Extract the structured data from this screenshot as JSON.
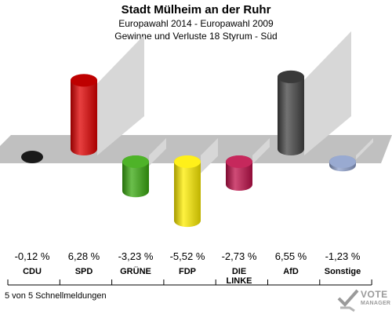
{
  "header": {
    "title": "Stadt Mülheim an der Ruhr",
    "subtitle1": "Europawahl 2014 - Europawahl 2009",
    "subtitle2": "Gewinne und Verluste 18 Styrum - Süd"
  },
  "footer": {
    "status": "5 von 5 Schnellmeldungen",
    "logo_line1": "VOTE",
    "logo_line2": "MANAGER"
  },
  "chart_data": {
    "type": "bar",
    "categories": [
      "CDU",
      "SPD",
      "GRÜNE",
      "FDP",
      "DIE LINKE",
      "AfD",
      "Sonstige"
    ],
    "category_lines": [
      [
        "CDU"
      ],
      [
        "SPD"
      ],
      [
        "GRÜNE"
      ],
      [
        "FDP"
      ],
      [
        "DIE",
        "LINKE"
      ],
      [
        "AfD"
      ],
      [
        "Sonstige"
      ]
    ],
    "values": [
      -0.12,
      6.28,
      -3.23,
      -5.52,
      -2.73,
      6.55,
      -1.23
    ],
    "value_labels": [
      "-0,12 %",
      "6,28 %",
      "-3,23 %",
      "-5,52 %",
      "-2,73 %",
      "6,55 %",
      "-1,23 %"
    ],
    "colors": [
      "#1a1a1a",
      "#e00000",
      "#3aaa10",
      "#ffee00",
      "#c0104a",
      "#444444",
      "#8ea0cc"
    ],
    "baseline": 0,
    "grid": false,
    "legend": "none"
  }
}
